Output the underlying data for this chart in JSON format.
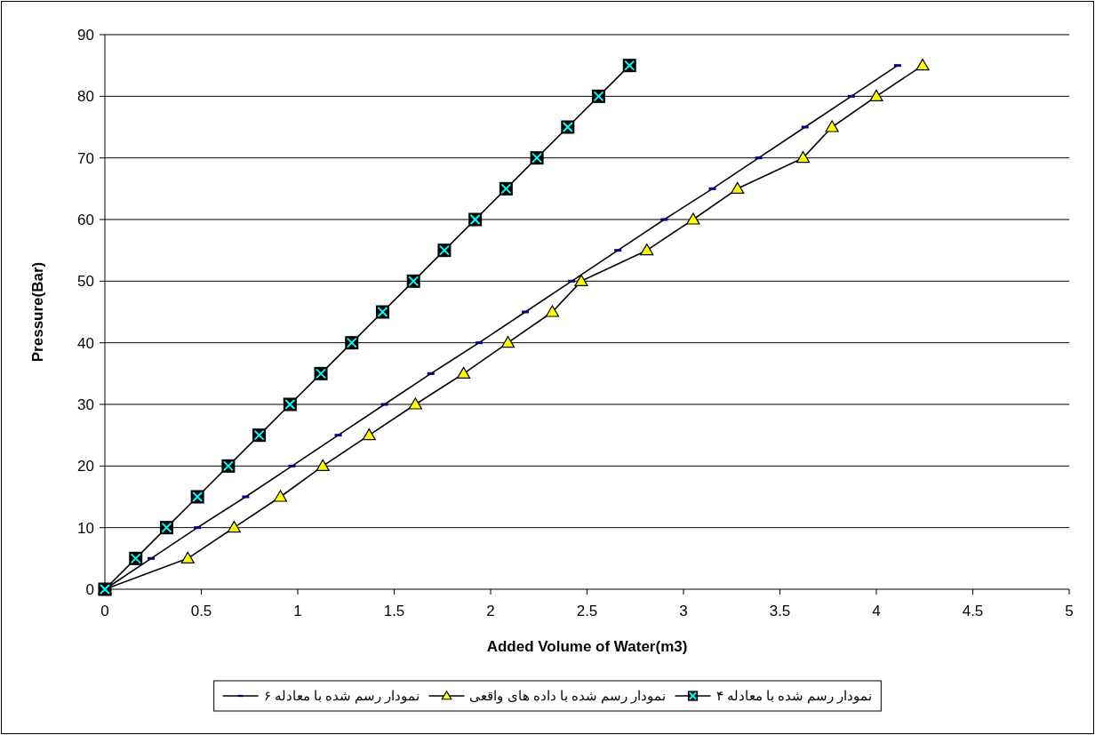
{
  "chart_data": {
    "type": "line",
    "xlabel": "Added Volume of Water(m3)",
    "ylabel": "Pressure(Bar)",
    "xlim": [
      0,
      5
    ],
    "ylim": [
      0,
      90
    ],
    "xticks": [
      0,
      {
        "value": 0.5,
        "label": "0.5"
      },
      1,
      {
        "value": 1.5,
        "label": "1.5"
      },
      2,
      {
        "value": 2.5,
        "label": "2.5"
      },
      3,
      {
        "value": 3.5,
        "label": "3.5"
      },
      4,
      {
        "value": 4.5,
        "label": "4.5"
      },
      5
    ],
    "yticks": [
      0,
      10,
      20,
      30,
      40,
      50,
      60,
      70,
      80,
      90
    ],
    "grid": "y",
    "legend": "bottom",
    "line_style": "solid",
    "series": [
      {
        "name": "نمودار رسم شده با معادله ۶",
        "color": "#000080",
        "marker": "square",
        "x": [
          0,
          0.24,
          0.48,
          0.73,
          0.97,
          1.21,
          1.45,
          1.69,
          1.94,
          2.18,
          2.42,
          2.66,
          2.9,
          3.15,
          3.39,
          3.63,
          3.87,
          4.11
        ],
        "values": [
          0,
          5,
          10,
          15,
          20,
          25,
          30,
          35,
          40,
          45,
          50,
          55,
          60,
          65,
          70,
          75,
          80,
          85
        ]
      },
      {
        "name": "نمودار رسم شده با داده های واقعی",
        "color": "#ffff00",
        "marker": "triangle",
        "x": [
          0,
          0.43,
          0.67,
          0.91,
          1.13,
          1.37,
          1.61,
          1.86,
          2.09,
          2.32,
          2.47,
          2.81,
          3.05,
          3.28,
          3.62,
          3.77,
          4.0,
          4.24
        ],
        "values": [
          0,
          5,
          10,
          15,
          20,
          25,
          30,
          35,
          40,
          45,
          50,
          55,
          60,
          65,
          70,
          75,
          80,
          85
        ]
      },
      {
        "name": "نمودار رسم شده با معادله ۴",
        "color": "#00ffff",
        "marker": "cross",
        "x": [
          0,
          0.16,
          0.32,
          0.48,
          0.64,
          0.8,
          0.96,
          1.12,
          1.28,
          1.44,
          1.6,
          1.76,
          1.92,
          2.08,
          2.24,
          2.4,
          2.56,
          2.72
        ],
        "values": [
          0,
          5,
          10,
          15,
          20,
          25,
          30,
          35,
          40,
          45,
          50,
          55,
          60,
          65,
          70,
          75,
          80,
          85
        ]
      }
    ]
  }
}
